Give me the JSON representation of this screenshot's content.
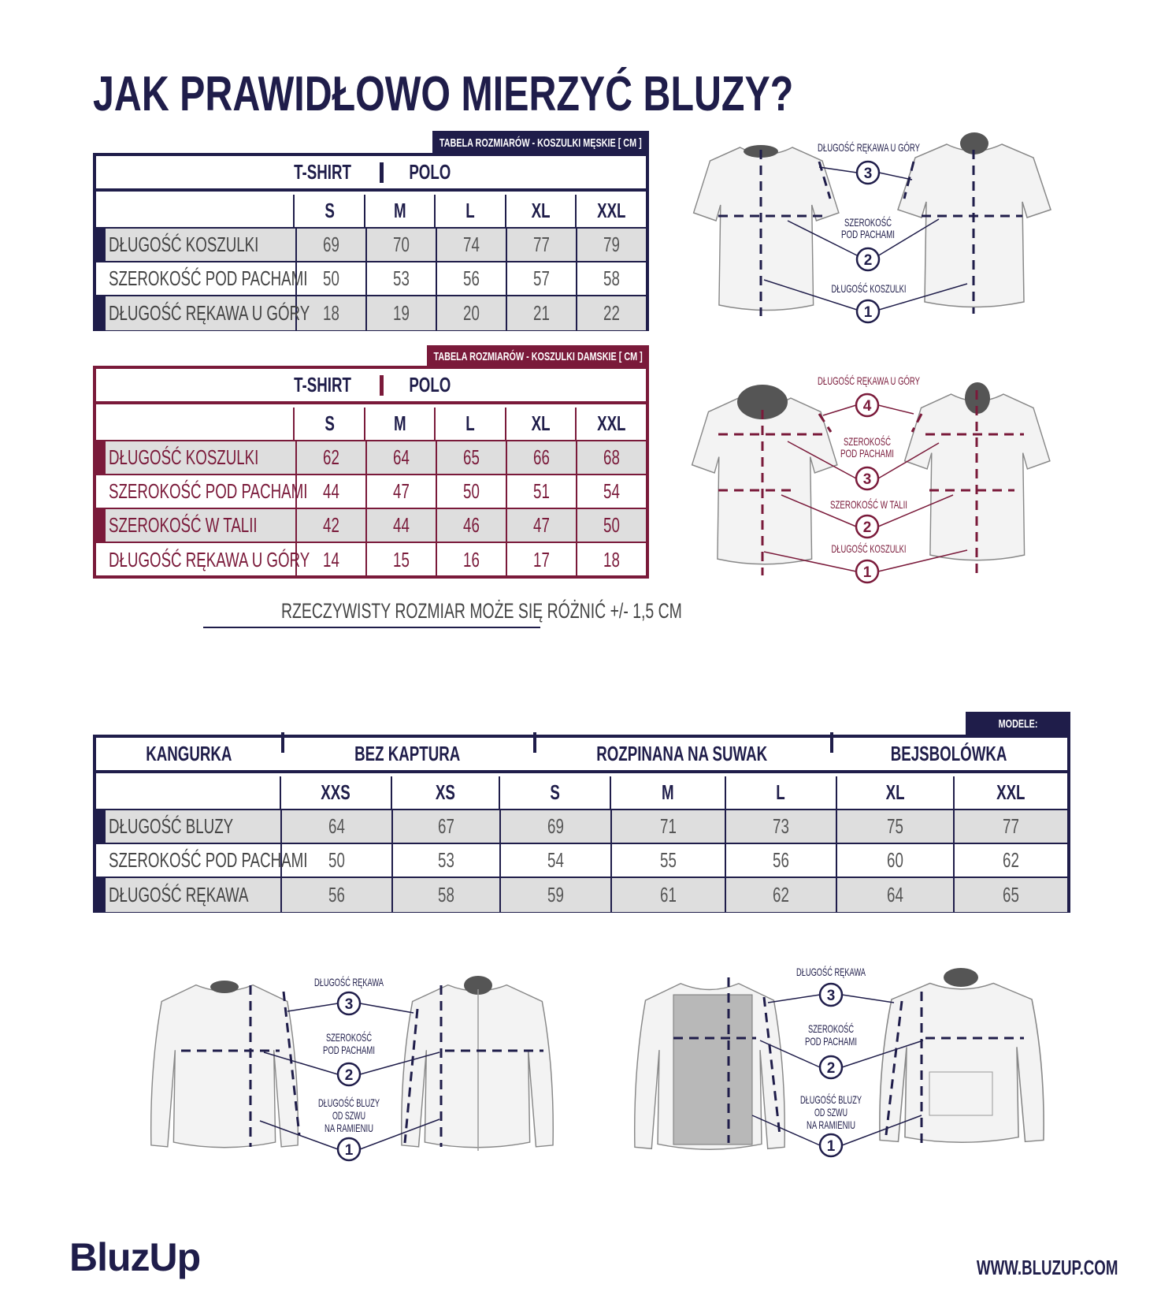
{
  "title": "JAK PRAWIDŁOWO MIERZYĆ BLUZY?",
  "colors": {
    "navy": "#1f1d4a",
    "maroon": "#7a1a3a",
    "row_gray": "#dedede"
  },
  "men_table": {
    "tag": "TABELA ROZMIARÓW - KOSZULKI MĘSKIE [ CM ]",
    "models": [
      "T-SHIRT",
      "POLO"
    ],
    "sizes": [
      "S",
      "M",
      "L",
      "XL",
      "XXL"
    ],
    "rows": [
      {
        "label": "DŁUGOŚĆ KOSZULKI",
        "values": [
          "69",
          "70",
          "74",
          "77",
          "79"
        ]
      },
      {
        "label": "SZEROKOŚĆ POD PACHAMI",
        "values": [
          "50",
          "53",
          "56",
          "57",
          "58"
        ]
      },
      {
        "label": "DŁUGOŚĆ RĘKAWA U GÓRY",
        "values": [
          "18",
          "19",
          "20",
          "21",
          "22"
        ]
      }
    ]
  },
  "women_table": {
    "tag": "TABELA ROZMIARÓW - KOSZULKI DAMSKIE [ CM ]",
    "models": [
      "T-SHIRT",
      "POLO"
    ],
    "sizes": [
      "S",
      "M",
      "L",
      "XL",
      "XXL"
    ],
    "rows": [
      {
        "label": "DŁUGOŚĆ KOSZULKI",
        "values": [
          "62",
          "64",
          "65",
          "66",
          "68"
        ]
      },
      {
        "label": "SZEROKOŚĆ POD PACHAMI",
        "values": [
          "44",
          "47",
          "50",
          "51",
          "54"
        ]
      },
      {
        "label": "SZEROKOŚĆ W TALII",
        "values": [
          "42",
          "44",
          "46",
          "47",
          "50"
        ]
      },
      {
        "label": "DŁUGOŚĆ RĘKAWA U GÓRY",
        "values": [
          "14",
          "15",
          "16",
          "17",
          "18"
        ]
      }
    ]
  },
  "note": "RZECZYWISTY ROZMIAR MOŻE SIĘ RÓŻNIĆ +/- 1,5 CM",
  "hoodie_table": {
    "tag": "MODELE:",
    "models": [
      "KANGURKA",
      "BEZ KAPTURA",
      "ROZPINANA NA SUWAK",
      "BEJSBOLÓWKA"
    ],
    "sizes": [
      "XXS",
      "XS",
      "S",
      "M",
      "L",
      "XL",
      "XXL"
    ],
    "rows": [
      {
        "label": "DŁUGOŚĆ BLUZY",
        "values": [
          "64",
          "67",
          "69",
          "71",
          "73",
          "75",
          "77"
        ]
      },
      {
        "label": "SZEROKOŚĆ POD PACHAMI",
        "values": [
          "50",
          "53",
          "54",
          "55",
          "56",
          "60",
          "62"
        ]
      },
      {
        "label": "DŁUGOŚĆ RĘKAWA",
        "values": [
          "56",
          "58",
          "59",
          "61",
          "62",
          "64",
          "65"
        ]
      }
    ]
  },
  "men_diagram": {
    "sleeve": "DŁUGOŚĆ RĘKAWA U GÓRY",
    "width_1": "SZEROKOŚĆ",
    "width_2": "POD PACHAMI",
    "length": "DŁUGOŚĆ KOSZULKI",
    "markers": [
      "1",
      "2",
      "3"
    ]
  },
  "women_diagram": {
    "sleeve": "DŁUGOŚĆ RĘKAWA U GÓRY",
    "width_1": "SZEROKOŚĆ",
    "width_2": "POD PACHAMI",
    "waist": "SZEROKOŚĆ W TALII",
    "length": "DŁUGOŚĆ KOSZULKI",
    "markers": [
      "1",
      "2",
      "3",
      "4"
    ]
  },
  "hoodie_diagram": {
    "sleeve": "DŁUGOŚĆ RĘKAWA",
    "width_1": "SZEROKOŚĆ",
    "width_2": "POD PACHAMI",
    "length_1": "DŁUGOŚĆ BLUZY",
    "length_2": "OD SZWU",
    "length_3": "NA RAMIENIU",
    "markers": [
      "1",
      "2",
      "3"
    ]
  },
  "footer": {
    "logo": "BluzUp",
    "url": "WWW.BLUZUP.COM"
  }
}
